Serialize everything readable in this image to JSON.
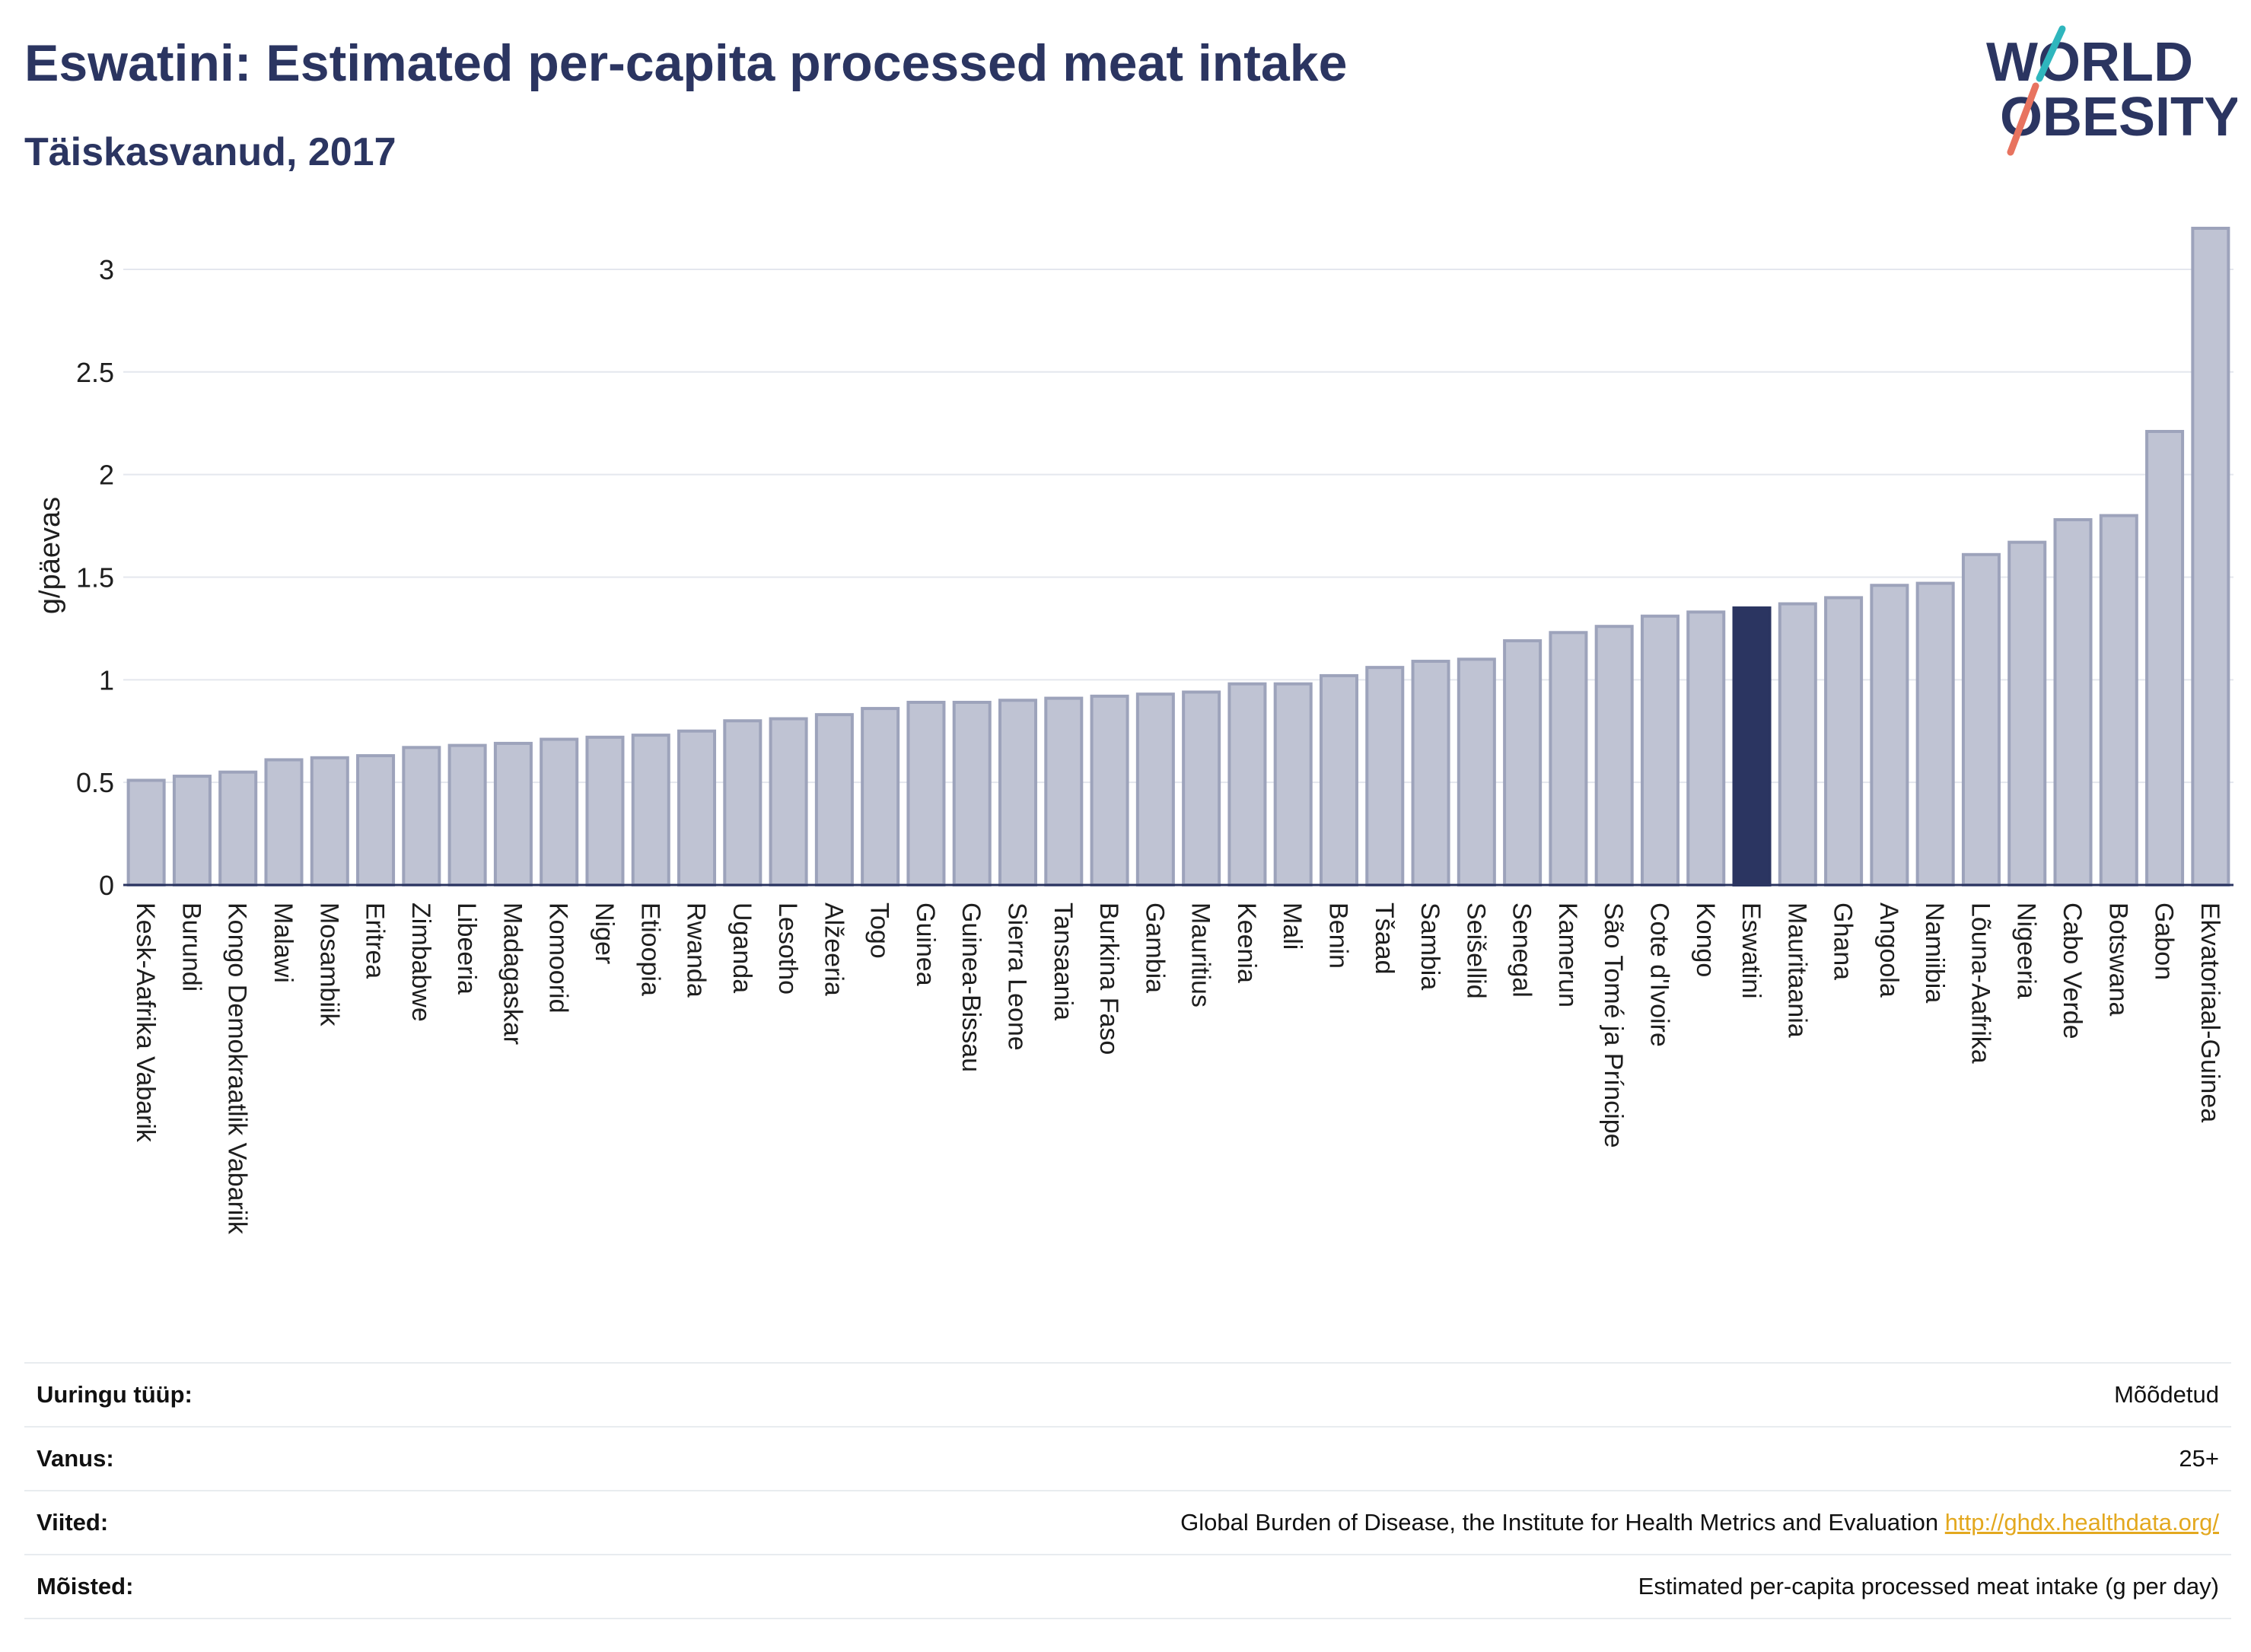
{
  "header": {
    "title": "Eswatini: Estimated per-capita processed meat intake",
    "subtitle": "Täiskasvanud, 2017"
  },
  "logo": {
    "line1": "WORLD",
    "line2": "OBESITY",
    "colors": {
      "text": "#2b3561",
      "slash_top": "#2fb6bd",
      "slash_bottom": "#e8735f"
    }
  },
  "chart_data": {
    "type": "bar",
    "ylabel": "g/päevas",
    "ylim": [
      0,
      3.2
    ],
    "yticks": [
      0,
      0.5,
      1,
      1.5,
      2,
      2.5,
      3
    ],
    "ytick_labels": [
      "0",
      "0.5",
      "1",
      "1.5",
      "2",
      "2.5",
      "3"
    ],
    "grid": true,
    "highlight": "Eswatini",
    "colors": {
      "bar": "#bfc3d3",
      "bar_border": "#9da3bb",
      "highlight": "#2b3561",
      "grid": "#e4e7ee",
      "axis": "#2b3561"
    },
    "categories": [
      "Kesk-Aafrika Vabarik",
      "Burundi",
      "Kongo Demokraatlik Vabariik",
      "Malawi",
      "Mosambiik",
      "Eritrea",
      "Zimbabwe",
      "Libeeria",
      "Madagaskar",
      "Komoorid",
      "Niger",
      "Etioopia",
      "Rwanda",
      "Uganda",
      "Lesotho",
      "Alžeeria",
      "Togo",
      "Guinea",
      "Guinea-Bissau",
      "Sierra Leone",
      "Tansaania",
      "Burkina Faso",
      "Gambia",
      "Mauritius",
      "Keenia",
      "Mali",
      "Benin",
      "Tšaad",
      "Sambia",
      "Seišellid",
      "Senegal",
      "Kamerun",
      "São Tomé ja Príncipe",
      "Cote d'Ivoire",
      "Kongo",
      "Eswatini",
      "Mauritaania",
      "Ghana",
      "Angoola",
      "Namiibia",
      "Lõuna-Aafrika",
      "Nigeeria",
      "Cabo Verde",
      "Botswana",
      "Gabon",
      "Ekvatoriaal-Guinea"
    ],
    "values": [
      0.51,
      0.53,
      0.55,
      0.61,
      0.62,
      0.63,
      0.67,
      0.68,
      0.69,
      0.71,
      0.72,
      0.73,
      0.75,
      0.8,
      0.81,
      0.83,
      0.86,
      0.89,
      0.89,
      0.9,
      0.91,
      0.92,
      0.93,
      0.94,
      0.98,
      0.98,
      1.02,
      1.06,
      1.09,
      1.1,
      1.19,
      1.23,
      1.26,
      1.31,
      1.33,
      1.35,
      1.37,
      1.4,
      1.46,
      1.47,
      1.61,
      1.67,
      1.78,
      1.8,
      2.21,
      3.2
    ]
  },
  "info": {
    "survey_type": {
      "label": "Uuringu tüüp:",
      "value": "Mõõdetud"
    },
    "age": {
      "label": "Vanus:",
      "value": "25+"
    },
    "references": {
      "label": "Viited:",
      "value": "Global Burden of Disease, the Institute for Health Metrics and Evaluation",
      "link": "http://ghdx.healthdata.org/"
    },
    "definitions": {
      "label": "Mõisted:",
      "value": "Estimated per-capita processed meat intake (g per day)"
    }
  }
}
